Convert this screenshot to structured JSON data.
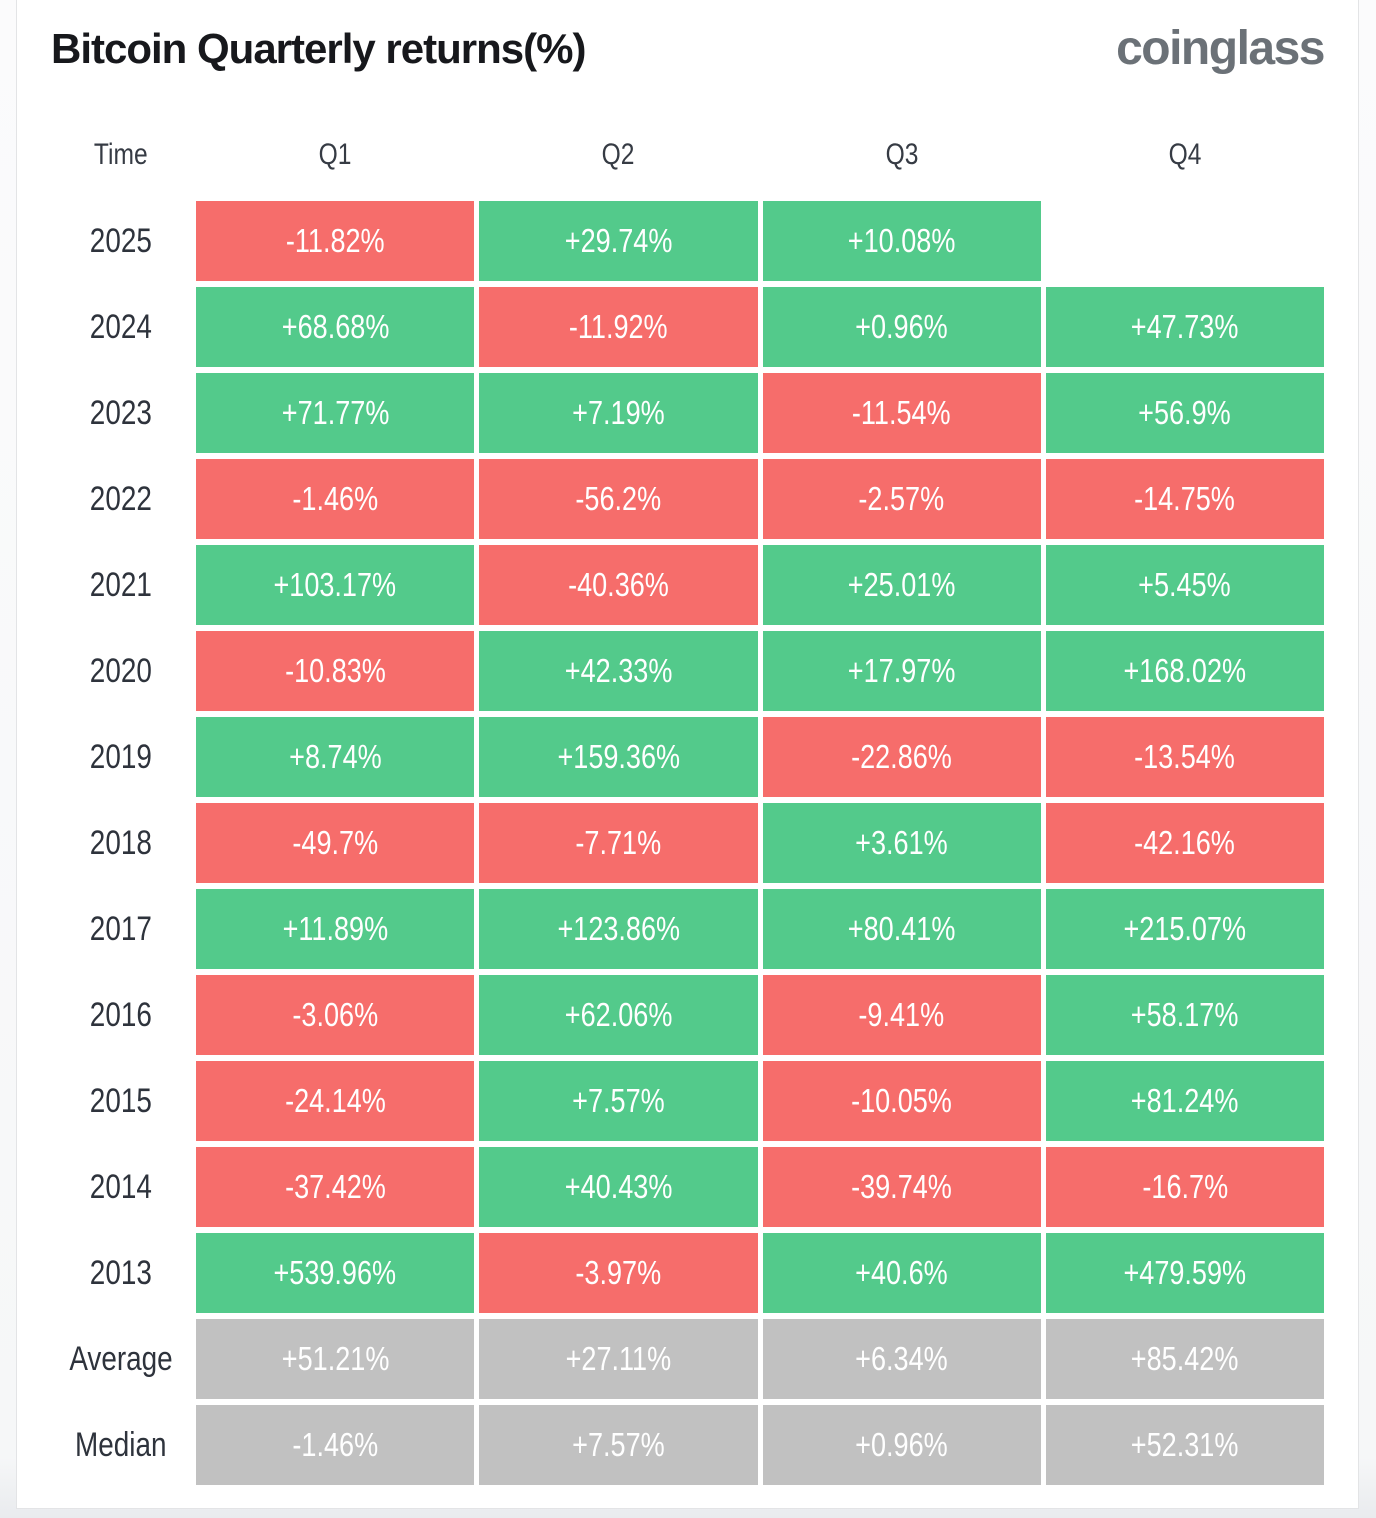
{
  "header": {
    "title": "Bitcoin Quarterly returns(%)",
    "logo": "coinglass"
  },
  "colors": {
    "positive": "#53ca8b",
    "negative": "#f66d6b",
    "summary": "#c1c1c1",
    "title_text": "#17181c",
    "logo_text": "#6b7177",
    "cell_text": "#ffffff"
  },
  "table": {
    "columns": [
      "Time",
      "Q1",
      "Q2",
      "Q3",
      "Q4"
    ],
    "rows": [
      {
        "label": "2025",
        "type": "year",
        "values": [
          "-11.82%",
          "+29.74%",
          "+10.08%",
          ""
        ]
      },
      {
        "label": "2024",
        "type": "year",
        "values": [
          "+68.68%",
          "-11.92%",
          "+0.96%",
          "+47.73%"
        ]
      },
      {
        "label": "2023",
        "type": "year",
        "values": [
          "+71.77%",
          "+7.19%",
          "-11.54%",
          "+56.9%"
        ]
      },
      {
        "label": "2022",
        "type": "year",
        "values": [
          "-1.46%",
          "-56.2%",
          "-2.57%",
          "-14.75%"
        ]
      },
      {
        "label": "2021",
        "type": "year",
        "values": [
          "+103.17%",
          "-40.36%",
          "+25.01%",
          "+5.45%"
        ]
      },
      {
        "label": "2020",
        "type": "year",
        "values": [
          "-10.83%",
          "+42.33%",
          "+17.97%",
          "+168.02%"
        ]
      },
      {
        "label": "2019",
        "type": "year",
        "values": [
          "+8.74%",
          "+159.36%",
          "-22.86%",
          "-13.54%"
        ]
      },
      {
        "label": "2018",
        "type": "year",
        "values": [
          "-49.7%",
          "-7.71%",
          "+3.61%",
          "-42.16%"
        ]
      },
      {
        "label": "2017",
        "type": "year",
        "values": [
          "+11.89%",
          "+123.86%",
          "+80.41%",
          "+215.07%"
        ]
      },
      {
        "label": "2016",
        "type": "year",
        "values": [
          "-3.06%",
          "+62.06%",
          "-9.41%",
          "+58.17%"
        ]
      },
      {
        "label": "2015",
        "type": "year",
        "values": [
          "-24.14%",
          "+7.57%",
          "-10.05%",
          "+81.24%"
        ]
      },
      {
        "label": "2014",
        "type": "year",
        "values": [
          "-37.42%",
          "+40.43%",
          "-39.74%",
          "-16.7%"
        ]
      },
      {
        "label": "2013",
        "type": "year",
        "values": [
          "+539.96%",
          "-3.97%",
          "+40.6%",
          "+479.59%"
        ]
      },
      {
        "label": "Average",
        "type": "summary",
        "values": [
          "+51.21%",
          "+27.11%",
          "+6.34%",
          "+85.42%"
        ]
      },
      {
        "label": "Median",
        "type": "summary",
        "values": [
          "-1.46%",
          "+7.57%",
          "+0.96%",
          "+52.31%"
        ]
      }
    ]
  },
  "chart_data": {
    "type": "heatmap",
    "title": "Bitcoin Quarterly returns(%)",
    "categories": [
      "Q1",
      "Q2",
      "Q3",
      "Q4"
    ],
    "unit": "percent",
    "legend_position": "none",
    "color_coding": "green = positive return, red = negative return, grey = Average/Median summary rows, blank = no data yet",
    "series": [
      {
        "name": "2025",
        "values": [
          -11.82,
          29.74,
          10.08,
          null
        ]
      },
      {
        "name": "2024",
        "values": [
          68.68,
          -11.92,
          0.96,
          47.73
        ]
      },
      {
        "name": "2023",
        "values": [
          71.77,
          7.19,
          -11.54,
          56.9
        ]
      },
      {
        "name": "2022",
        "values": [
          -1.46,
          -56.2,
          -2.57,
          -14.75
        ]
      },
      {
        "name": "2021",
        "values": [
          103.17,
          -40.36,
          25.01,
          5.45
        ]
      },
      {
        "name": "2020",
        "values": [
          -10.83,
          42.33,
          17.97,
          168.02
        ]
      },
      {
        "name": "2019",
        "values": [
          8.74,
          159.36,
          -22.86,
          -13.54
        ]
      },
      {
        "name": "2018",
        "values": [
          -49.7,
          -7.71,
          3.61,
          -42.16
        ]
      },
      {
        "name": "2017",
        "values": [
          11.89,
          123.86,
          80.41,
          215.07
        ]
      },
      {
        "name": "2016",
        "values": [
          -3.06,
          62.06,
          -9.41,
          58.17
        ]
      },
      {
        "name": "2015",
        "values": [
          -24.14,
          7.57,
          -10.05,
          81.24
        ]
      },
      {
        "name": "2014",
        "values": [
          -37.42,
          40.43,
          -39.74,
          -16.7
        ]
      },
      {
        "name": "2013",
        "values": [
          539.96,
          -3.97,
          40.6,
          479.59
        ]
      },
      {
        "name": "Average",
        "values": [
          51.21,
          27.11,
          6.34,
          85.42
        ]
      },
      {
        "name": "Median",
        "values": [
          -1.46,
          7.57,
          0.96,
          52.31
        ]
      }
    ]
  }
}
